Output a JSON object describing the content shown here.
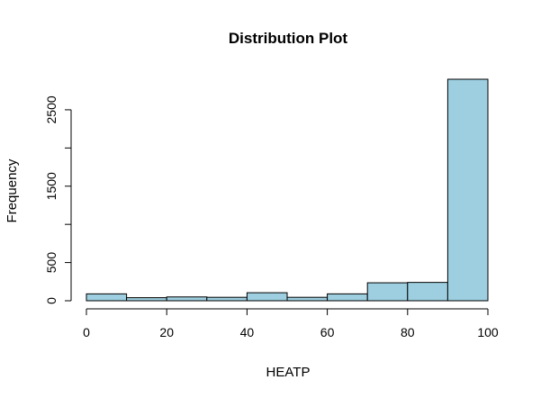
{
  "chart_data": {
    "type": "bar",
    "title": "Distribution Plot",
    "xlabel": "HEATP",
    "ylabel": "Frequency",
    "bins": [
      {
        "from": 0,
        "to": 10,
        "count": 90
      },
      {
        "from": 10,
        "to": 20,
        "count": 40
      },
      {
        "from": 20,
        "to": 30,
        "count": 50
      },
      {
        "from": 30,
        "to": 40,
        "count": 45
      },
      {
        "from": 40,
        "to": 50,
        "count": 105
      },
      {
        "from": 50,
        "to": 60,
        "count": 45
      },
      {
        "from": 60,
        "to": 70,
        "count": 90
      },
      {
        "from": 70,
        "to": 80,
        "count": 235
      },
      {
        "from": 80,
        "to": 90,
        "count": 240
      },
      {
        "from": 90,
        "to": 100,
        "count": 2900
      }
    ],
    "xlim": [
      0,
      100
    ],
    "ylim": [
      0,
      2900
    ],
    "x_ticks": [
      0,
      20,
      40,
      60,
      80,
      100
    ],
    "y_ticks": [
      0,
      500,
      1500,
      2500
    ],
    "y_minor_ticks": [
      1000,
      2000
    ],
    "bar_color": "#9ecfe0",
    "grid": false,
    "legend": "none"
  }
}
